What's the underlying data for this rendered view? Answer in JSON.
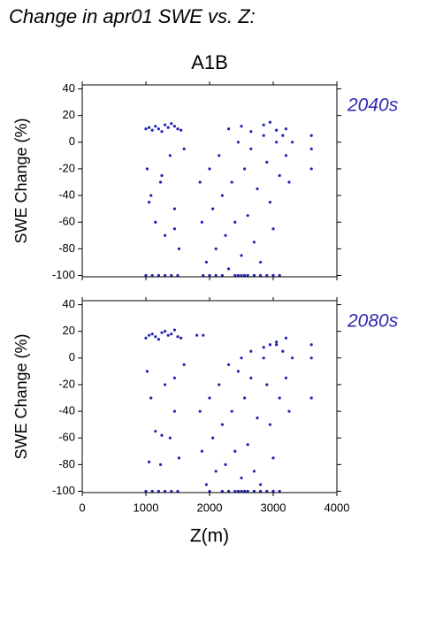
{
  "chart_data": [
    {
      "type": "scatter",
      "title": "Change in apr01 SWE vs. Z:",
      "subtitle": "A1B",
      "annotation": "2040s",
      "ylabel": "SWE Change (%)",
      "xlim": [
        0,
        4000
      ],
      "xticks": [
        0,
        1000,
        2000,
        3000,
        4000
      ],
      "ylim": [
        -101,
        43
      ],
      "yticks": [
        -100,
        -80,
        -60,
        -40,
        -20,
        0,
        20,
        40
      ],
      "series": [
        {
          "color": "#2222bb",
          "x": [
            1000,
            1050,
            1100,
            1150,
            1200,
            1250,
            1300,
            1350,
            1400,
            1450,
            1500,
            1550,
            1020,
            1080,
            1150,
            1230,
            1300,
            1380,
            1450,
            1520,
            1600,
            1000,
            1100,
            1200,
            1300,
            1400,
            1500,
            1050,
            1250,
            1450,
            1850,
            1880,
            1950,
            2000,
            2050,
            2100,
            2150,
            2200,
            2250,
            2300,
            2350,
            2400,
            2450,
            2500,
            2550,
            2600,
            2650,
            2700,
            2750,
            2800,
            2850,
            2900,
            2950,
            3000,
            3050,
            3100,
            3150,
            3200,
            3250,
            3300,
            3600,
            3600,
            3600,
            2000,
            2200,
            2400,
            2500,
            2550,
            2600,
            2700,
            2800,
            2900,
            3000,
            3100,
            2300,
            2500,
            2650,
            2850,
            2950,
            3050,
            3200,
            1900,
            2100,
            2450,
            2550,
            2700,
            3000
          ],
          "y": [
            10,
            11,
            9,
            12,
            10,
            8,
            13,
            11,
            14,
            12,
            10,
            9,
            -20,
            -40,
            -60,
            -30,
            -70,
            -10,
            -50,
            -80,
            -5,
            -100,
            -100,
            -100,
            -100,
            -100,
            -100,
            -45,
            -25,
            -65,
            -30,
            -60,
            -90,
            -20,
            -50,
            -80,
            -10,
            -40,
            -70,
            -95,
            -30,
            -60,
            0,
            -85,
            -20,
            -55,
            -5,
            -75,
            -35,
            -90,
            5,
            -15,
            -45,
            -65,
            0,
            -25,
            5,
            -10,
            -30,
            0,
            5,
            -5,
            -20,
            -100,
            -100,
            -100,
            -100,
            -100,
            -100,
            -100,
            -100,
            -100,
            -100,
            -100,
            10,
            12,
            8,
            13,
            15,
            9,
            10,
            -100,
            -100,
            -100,
            -100,
            -100,
            -100
          ]
        }
      ]
    },
    {
      "type": "scatter",
      "annotation": "2080s",
      "ylabel": "SWE Change (%)",
      "xlabel": "Z(m)",
      "xlim": [
        0,
        4000
      ],
      "xticks": [
        0,
        1000,
        2000,
        3000,
        4000
      ],
      "ylim": [
        -101,
        43
      ],
      "yticks": [
        -100,
        -80,
        -60,
        -40,
        -20,
        0,
        20,
        40
      ],
      "series": [
        {
          "color": "#2222bb",
          "x": [
            1000,
            1050,
            1100,
            1150,
            1200,
            1250,
            1300,
            1350,
            1400,
            1450,
            1500,
            1550,
            1020,
            1080,
            1150,
            1230,
            1300,
            1380,
            1450,
            1520,
            1600,
            1000,
            1100,
            1200,
            1300,
            1400,
            1500,
            1050,
            1250,
            1450,
            1850,
            1880,
            1950,
            2000,
            2050,
            2100,
            2150,
            2200,
            2250,
            2300,
            2350,
            2400,
            2450,
            2500,
            2550,
            2600,
            2650,
            2700,
            2750,
            2800,
            2850,
            2900,
            2950,
            3000,
            3050,
            3100,
            3150,
            3200,
            3250,
            3300,
            3600,
            3600,
            3600,
            2000,
            2200,
            2400,
            2500,
            2550,
            2600,
            2700,
            2800,
            2900,
            3000,
            3100,
            2300,
            2500,
            2650,
            2850,
            2950,
            3050,
            3200,
            1800,
            1900,
            2450,
            2550,
            2700,
            3000
          ],
          "y": [
            15,
            17,
            18,
            16,
            14,
            19,
            20,
            17,
            18,
            21,
            16,
            15,
            -10,
            -30,
            -55,
            -80,
            -20,
            -60,
            -40,
            -75,
            -5,
            -100,
            -100,
            -100,
            -100,
            -100,
            -100,
            -78,
            -58,
            -15,
            -40,
            -70,
            -95,
            -30,
            -60,
            -85,
            -20,
            -50,
            -80,
            -100,
            -40,
            -70,
            -10,
            -90,
            -30,
            -65,
            -15,
            -85,
            -45,
            -95,
            0,
            -20,
            -50,
            -75,
            10,
            -30,
            5,
            -15,
            -40,
            0,
            10,
            0,
            -30,
            -100,
            -100,
            -100,
            -100,
            -100,
            -100,
            -100,
            -100,
            -100,
            -100,
            -100,
            -5,
            0,
            5,
            8,
            10,
            12,
            15,
            17,
            17,
            -100,
            -100,
            -100,
            -100
          ]
        }
      ]
    }
  ]
}
